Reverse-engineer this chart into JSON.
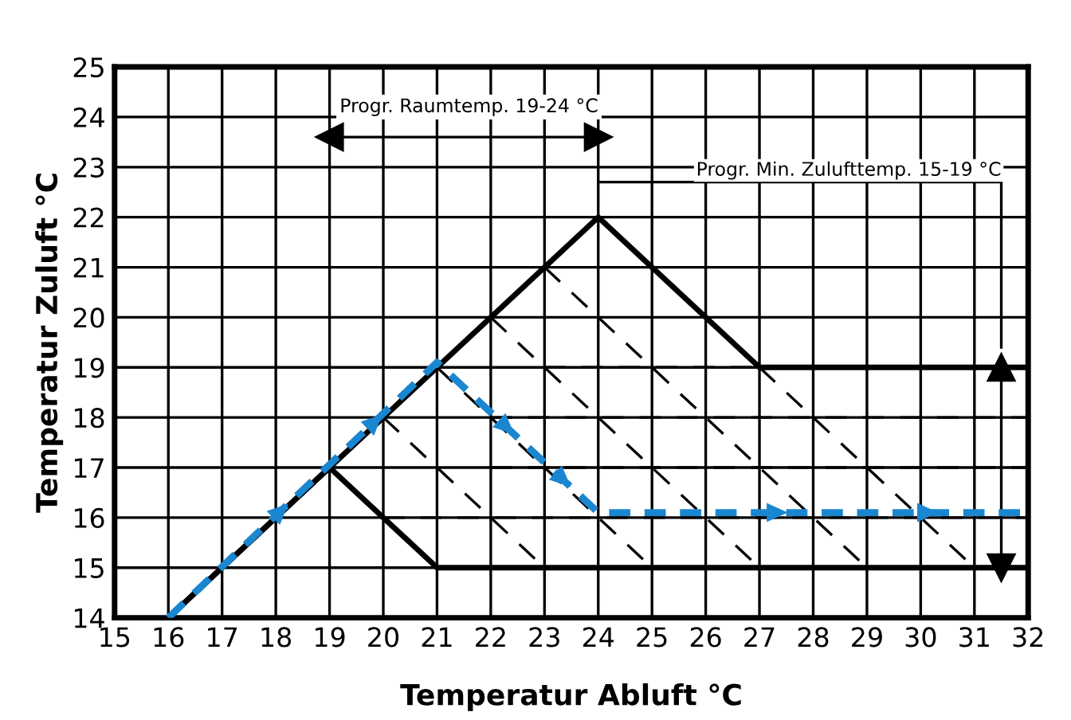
{
  "chart_data": {
    "type": "line",
    "xlabel": "Temperatur Abluft °C",
    "ylabel": "Temperatur Zuluft °C",
    "xlim": [
      15,
      32
    ],
    "ylim": [
      14,
      25
    ],
    "xticks": [
      15,
      16,
      17,
      18,
      19,
      20,
      21,
      22,
      23,
      24,
      25,
      26,
      27,
      28,
      29,
      30,
      31,
      32
    ],
    "yticks": [
      14,
      15,
      16,
      17,
      18,
      19,
      20,
      21,
      22,
      23,
      24,
      25
    ],
    "grid": true,
    "marker": "none",
    "series": [
      {
        "color": "#000000",
        "line_style": "solid",
        "x": [
          16,
          24,
          27,
          32
        ],
        "values": [
          14,
          22,
          19,
          19
        ]
      },
      {
        "color": "#000000",
        "line_style": "solid",
        "x": [
          16,
          19,
          21,
          32
        ],
        "values": [
          14,
          17,
          15,
          15
        ]
      },
      {
        "color": "#000000",
        "line_style": "dashed",
        "x": [
          20,
          23
        ],
        "values": [
          18,
          15
        ]
      },
      {
        "color": "#000000",
        "line_style": "dashed",
        "x": [
          21,
          25
        ],
        "values": [
          19,
          15
        ]
      },
      {
        "color": "#000000",
        "line_style": "dashed",
        "x": [
          22,
          27
        ],
        "values": [
          20,
          15
        ]
      },
      {
        "color": "#000000",
        "line_style": "dashed",
        "x": [
          23,
          29
        ],
        "values": [
          21,
          15
        ]
      },
      {
        "color": "#000000",
        "line_style": "dashed",
        "x": [
          27,
          31
        ],
        "values": [
          19,
          15
        ]
      },
      {
        "color": "#000000",
        "line_style": "dashed",
        "x": [
          23,
          27
        ],
        "values": [
          19,
          19
        ]
      },
      {
        "color": "#000000",
        "line_style": "dashed",
        "x": [
          22,
          32
        ],
        "values": [
          18,
          18
        ]
      },
      {
        "color": "#000000",
        "line_style": "dashed",
        "x": [
          22,
          32
        ],
        "values": [
          17,
          17
        ]
      },
      {
        "color": "#000000",
        "line_style": "dashed",
        "x": [
          20,
          32
        ],
        "values": [
          16,
          16
        ]
      },
      {
        "color": "#1a86d0",
        "line_style": "dashed",
        "x": [
          16,
          21,
          24,
          32
        ],
        "values": [
          14,
          19.1,
          16.1,
          16.1
        ]
      },
      {
        "color": "#000000",
        "line_style": "solid",
        "marker": "triangle",
        "x": [
          19,
          24
        ],
        "values": [
          23.6,
          23.6
        ]
      },
      {
        "color": "#000000",
        "line_style": "solid",
        "marker": "triangle",
        "x": [
          31.5,
          31.5
        ],
        "values": [
          15,
          19
        ]
      },
      {
        "color": "#000000",
        "line_style": "solid",
        "x": [
          24,
          31.5,
          31.5
        ],
        "values": [
          22.7,
          22.7,
          19.4
        ]
      }
    ],
    "annotations": [
      "Progr. Raumtemp. 19-24 °C",
      "Progr. Min. Zulufttemp. 15-19 °C"
    ]
  }
}
